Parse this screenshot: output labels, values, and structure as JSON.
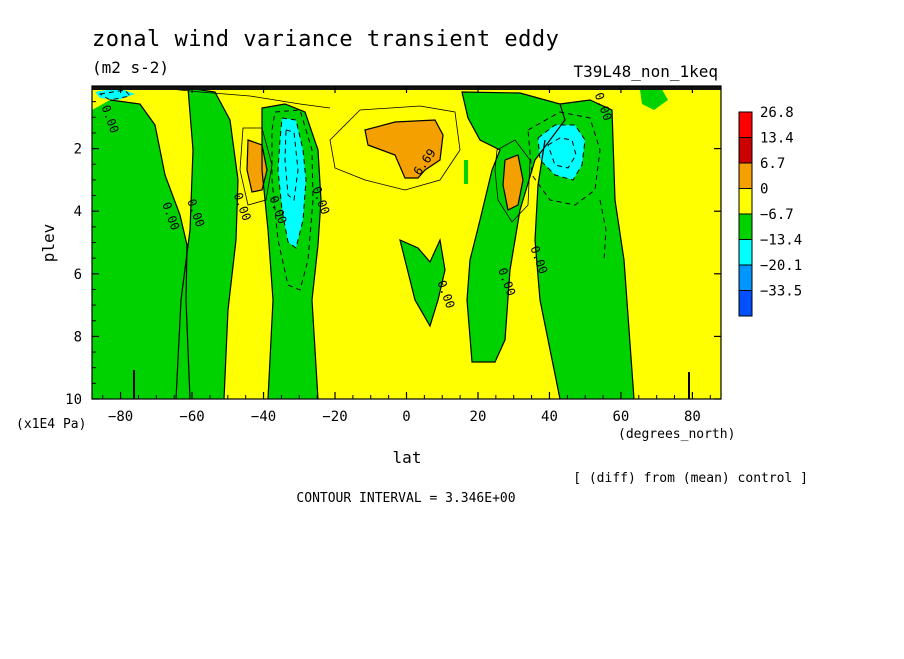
{
  "chart_data": {
    "type": "heatmap",
    "title": "zonal wind variance transient eddy",
    "units": "(m2 s-2)",
    "experiment": "T39L48_non_1keq",
    "xlabel": "lat",
    "x_units": "(degrees_north)",
    "ylabel": "plev",
    "y_units": "(x1E4 Pa)",
    "xlim": [
      -88,
      88
    ],
    "ylim": [
      10,
      0
    ],
    "x_ticks": [
      -80,
      -60,
      -40,
      -20,
      0,
      20,
      40,
      60,
      80
    ],
    "x_tick_labels": [
      "−80",
      "−60",
      "−40",
      "−20",
      "0",
      "20",
      "40",
      "60",
      "80"
    ],
    "y_ticks": [
      2,
      4,
      6,
      8,
      10
    ],
    "y_tick_labels": [
      "2",
      "4",
      "6",
      "8",
      "10"
    ],
    "note": "[ (diff) from (mean) control ]",
    "contour_interval_text": "CONTOUR INTERVAL = 3.346E+00",
    "contour_labels": [
      {
        "text": "0.00",
        "lat": -84,
        "plev": 1.1
      },
      {
        "text": "0.00",
        "lat": -67,
        "plev": 4.2
      },
      {
        "text": "0.00",
        "lat": -60,
        "plev": 4.1
      },
      {
        "text": "0.00",
        "lat": -47,
        "plev": 3.9
      },
      {
        "text": "0.00",
        "lat": -37,
        "plev": 4.0
      },
      {
        "text": "0.00",
        "lat": -25,
        "plev": 3.7
      },
      {
        "text": "6.69",
        "lat": 6,
        "plev": 2.5
      },
      {
        "text": "0.00",
        "lat": 10,
        "plev": 6.7
      },
      {
        "text": "0.00",
        "lat": 27,
        "plev": 6.3
      },
      {
        "text": "0.00",
        "lat": 36,
        "plev": 5.6
      },
      {
        "text": "0.00",
        "lat": 54,
        "plev": 0.7
      }
    ],
    "legend": {
      "levels": [
        "26.8",
        "13.4",
        "6.7",
        "0",
        "-6.7",
        "-13.4",
        "-20.1",
        "-33.5"
      ],
      "colors": [
        "#ff0000",
        "#cc0000",
        "#f4a000",
        "#ffff00",
        "#00d200",
        "#00ffff",
        "#0096ff",
        "#0050ff"
      ]
    },
    "fields": {
      "background": "#ffff00",
      "positive": "#f4a000",
      "negative": "#00d200",
      "strong_negative": "#00ffff"
    }
  }
}
